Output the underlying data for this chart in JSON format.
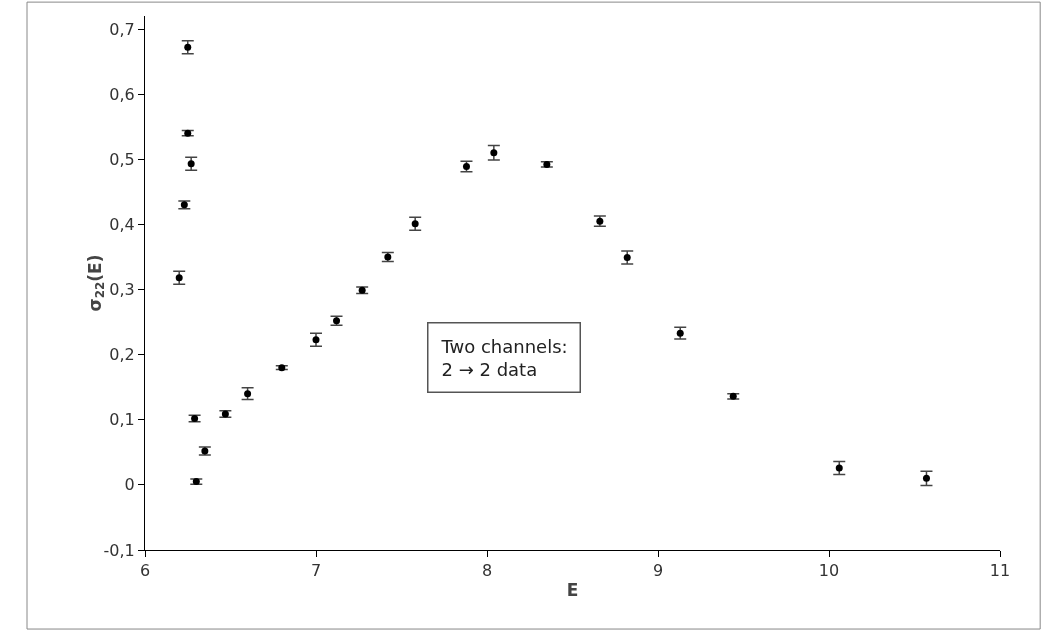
{
  "chart_data": {
    "type": "scatter",
    "xlabel": "E",
    "ylabel": "σ$_{22}$(E)",
    "x": [
      6.25,
      6.25,
      6.27,
      6.23,
      6.2,
      6.29,
      6.35,
      6.3,
      6.47,
      6.6,
      6.8,
      7.0,
      7.12,
      7.27,
      7.42,
      7.58,
      7.88,
      8.04,
      8.35,
      8.66,
      8.82,
      9.13,
      9.44,
      10.06,
      10.57
    ],
    "values": [
      0.672,
      0.54,
      0.493,
      0.43,
      0.318,
      0.102,
      0.052,
      0.005,
      0.109,
      0.14,
      0.18,
      0.223,
      0.252,
      0.299,
      0.35,
      0.401,
      0.489,
      0.51,
      0.492,
      0.405,
      0.349,
      0.233,
      0.136,
      0.026,
      0.01
    ],
    "errors": [
      0.01,
      0.004,
      0.01,
      0.006,
      0.01,
      0.005,
      0.006,
      0.004,
      0.005,
      0.009,
      0.003,
      0.01,
      0.007,
      0.005,
      0.007,
      0.01,
      0.008,
      0.011,
      0.004,
      0.008,
      0.01,
      0.009,
      0.004,
      0.01,
      0.011
    ],
    "color": "#000000",
    "marker": "circle",
    "xlim": [
      6,
      11
    ],
    "xticks": [
      6,
      7,
      8,
      9,
      10,
      11
    ],
    "ylim": [
      -0.1,
      0.72
    ],
    "yticks": [
      {
        "value": -0.1,
        "label": "-0,1"
      },
      0,
      {
        "value": 0.1,
        "label": "0,1"
      },
      {
        "value": 0.2,
        "label": "0,2"
      },
      {
        "value": 0.3,
        "label": "0,3"
      },
      {
        "value": 0.4,
        "label": "0,4"
      },
      {
        "value": 0.5,
        "label": "0,5"
      },
      {
        "value": 0.6,
        "label": "0,6"
      },
      {
        "value": 0.7,
        "label": "0,7"
      }
    ],
    "annotations": [
      "Two channels:\n2 → 2 data"
    ],
    "grid": false,
    "legend": false
  }
}
